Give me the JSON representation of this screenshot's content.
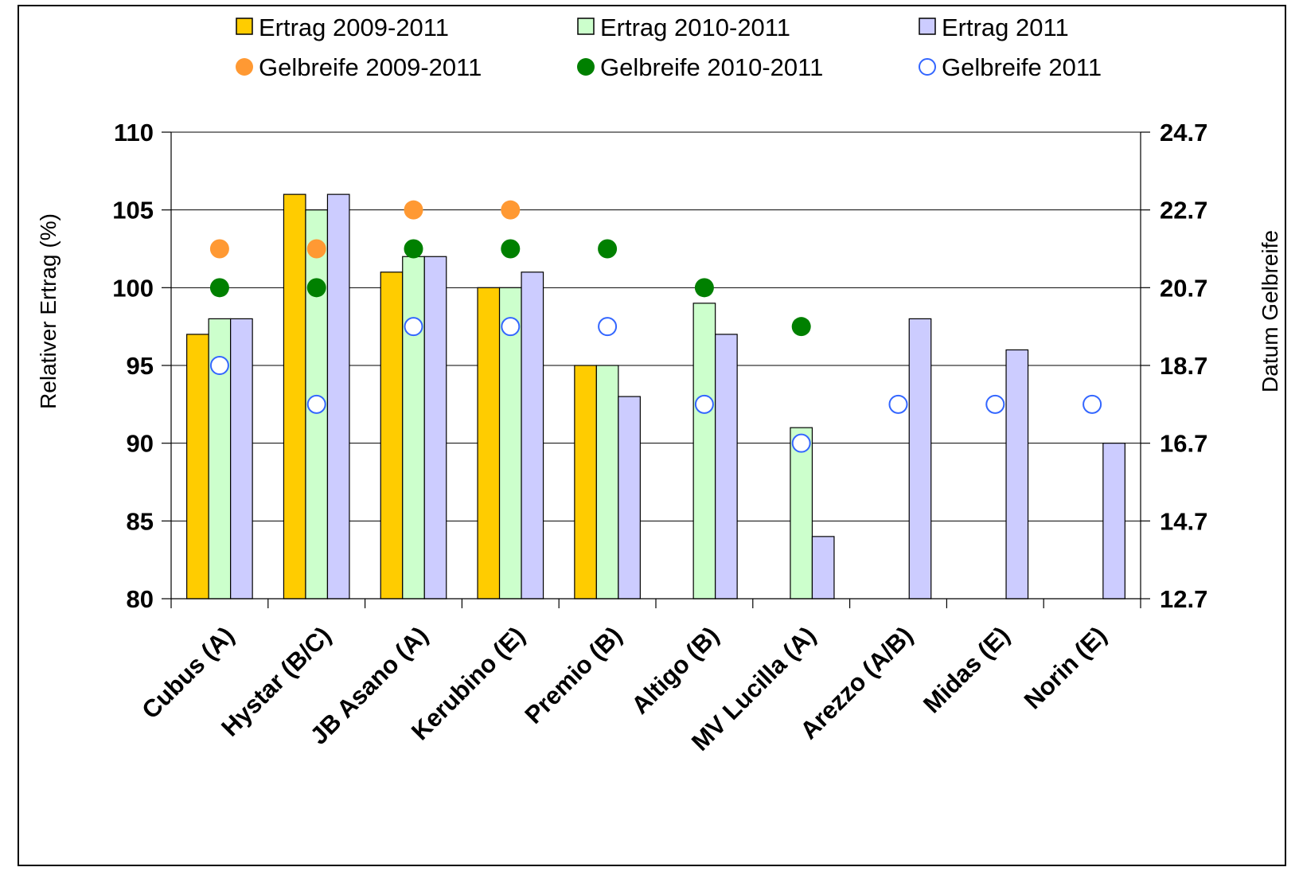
{
  "chart_data": {
    "type": "bar",
    "categories": [
      "Cubus (A)",
      "Hystar (B/C)",
      "JB Asano (A)",
      "Kerubino (E)",
      "Premio (B)",
      "Altigo (B)",
      "MV Lucilla (A)",
      "Arezzo (A/B)",
      "Midas (E)",
      "Norin (E)"
    ],
    "series": [
      {
        "name": "Ertrag 2009-2011",
        "kind": "bar",
        "color": "#FFCC00",
        "values": [
          97,
          106,
          101,
          100,
          95,
          null,
          null,
          null,
          null,
          null
        ]
      },
      {
        "name": "Ertrag 2010-2011",
        "kind": "bar",
        "color": "#CCFFCC",
        "values": [
          98,
          105,
          102,
          100,
          95,
          99,
          91,
          null,
          null,
          null
        ]
      },
      {
        "name": "Ertrag 2011",
        "kind": "bar",
        "color": "#CCCCFF",
        "values": [
          98,
          106,
          102,
          101,
          93,
          97,
          84,
          98,
          96,
          90
        ]
      },
      {
        "name": "Gelbreife 2009-2011",
        "kind": "point",
        "axis": "right",
        "color": "#FF9933",
        "values": [
          21.7,
          21.7,
          22.7,
          22.7,
          null,
          null,
          null,
          null,
          null,
          null
        ]
      },
      {
        "name": "Gelbreife 2010-2011",
        "kind": "point",
        "axis": "right",
        "color": "#008000",
        "values": [
          20.7,
          20.7,
          21.7,
          21.7,
          21.7,
          20.7,
          19.7,
          null,
          null,
          null
        ]
      },
      {
        "name": "Gelbreife 2011",
        "kind": "point-hollow",
        "axis": "right",
        "color": "#3366FF",
        "values": [
          18.7,
          17.7,
          19.7,
          19.7,
          19.7,
          17.7,
          16.7,
          17.7,
          17.7,
          17.7
        ]
      }
    ],
    "ylabel": "Relativer Ertrag (%)",
    "y2label": "Datum Gelbreife",
    "ylim": [
      80,
      110
    ],
    "y2lim": [
      12.7,
      24.7
    ],
    "yticks": [
      "80",
      "85",
      "90",
      "95",
      "100",
      "105",
      "110"
    ],
    "y2ticks": [
      "12.7",
      "14.7",
      "16.7",
      "18.7",
      "20.7",
      "22.7",
      "24.7"
    ],
    "grid": true,
    "legend_position": "top"
  }
}
